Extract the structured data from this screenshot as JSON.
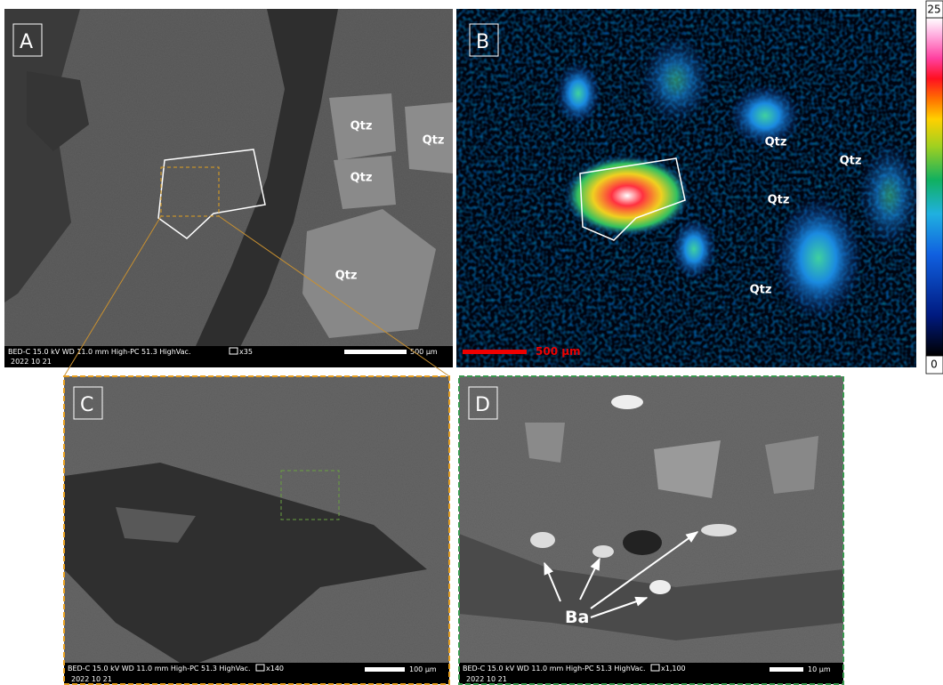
{
  "panels": [
    {
      "label": "A",
      "info": "BED-C  15.0 kV  WD 11.0 mm  High-PC 51.3  HighVac.",
      "magnification": "x35",
      "date": "2022 10 21",
      "scale": "500 µm",
      "annotations": [
        "Qtz",
        "Qtz",
        "Qtz",
        "Qtz"
      ]
    },
    {
      "label": "B",
      "scale": "500 µm",
      "annotations": [
        "Qtz",
        "Qtz",
        "Qtz",
        "Qtz"
      ]
    },
    {
      "label": "C",
      "info": "BED-C  15.0 kV  WD 11.0 mm  High-PC 51.3  HighVac.",
      "magnification": "x140",
      "date": "2022 10 21",
      "scale": "100 µm"
    },
    {
      "label": "D",
      "info": "BED-C  15.0 kV  WD 11.0 mm  High-PC 51.3  HighVac.",
      "magnification": "x1,100",
      "date": "2022 10 21",
      "scale": "10 µm",
      "annotations": [
        "Ba"
      ]
    }
  ],
  "colorbar": {
    "max": 25,
    "min": 0
  }
}
